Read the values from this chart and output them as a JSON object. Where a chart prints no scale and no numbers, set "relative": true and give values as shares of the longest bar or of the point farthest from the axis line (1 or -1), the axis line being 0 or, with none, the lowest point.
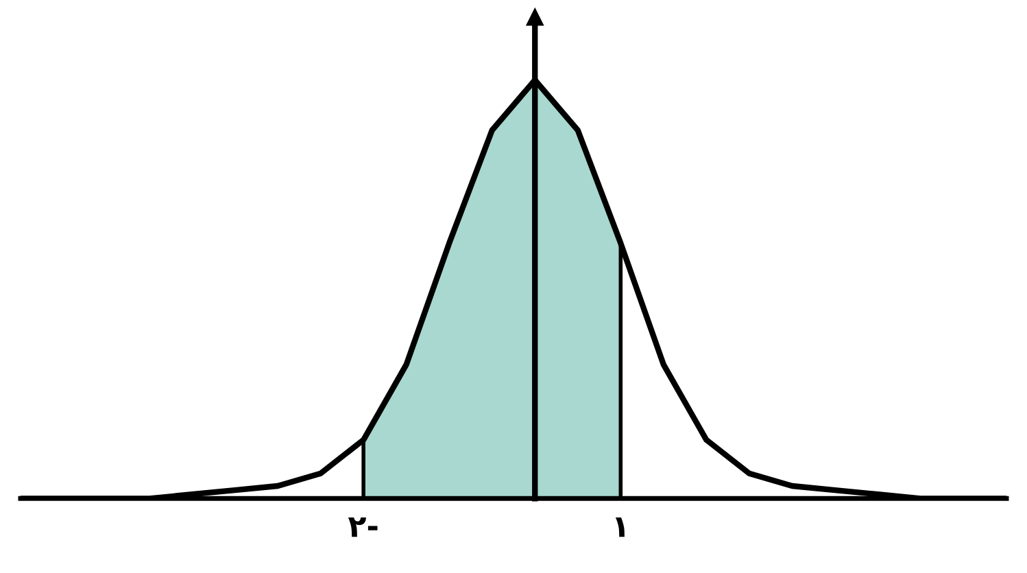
{
  "chart_data": {
    "type": "line",
    "relative": true,
    "tick_labels": "x",
    "xlim": [
      -6,
      5.5
    ],
    "xticks": [
      {
        "value": -2,
        "label": "۲-"
      },
      {
        "value": 1,
        "label": "۱"
      }
    ],
    "series": [
      {
        "type": "area",
        "color": "#a8d8cf",
        "x": [
          -2,
          -1.5,
          -1,
          -0.5,
          0,
          0.5,
          1
        ],
        "values": [
          0.14,
          0.32,
          0.61,
          0.88,
          1,
          0.88,
          0.61
        ]
      },
      {
        "color": "#000000",
        "x": [
          -6,
          -5,
          -4.5,
          -4,
          -3.5,
          -3,
          -2.5,
          -2,
          -1.5,
          -1,
          -0.5,
          0,
          0.5,
          1,
          1.5,
          2,
          2.5,
          3,
          3.5,
          4,
          4.5,
          5,
          5.5
        ],
        "values": [
          0,
          0,
          0,
          0.01,
          0.02,
          0.03,
          0.06,
          0.14,
          0.32,
          0.61,
          0.88,
          1,
          0.88,
          0.61,
          0.32,
          0.14,
          0.06,
          0.03,
          0.02,
          0.01,
          0,
          0,
          0
        ]
      }
    ],
    "grid": false,
    "legend": false,
    "marker": "none",
    "line_style": "solid"
  }
}
